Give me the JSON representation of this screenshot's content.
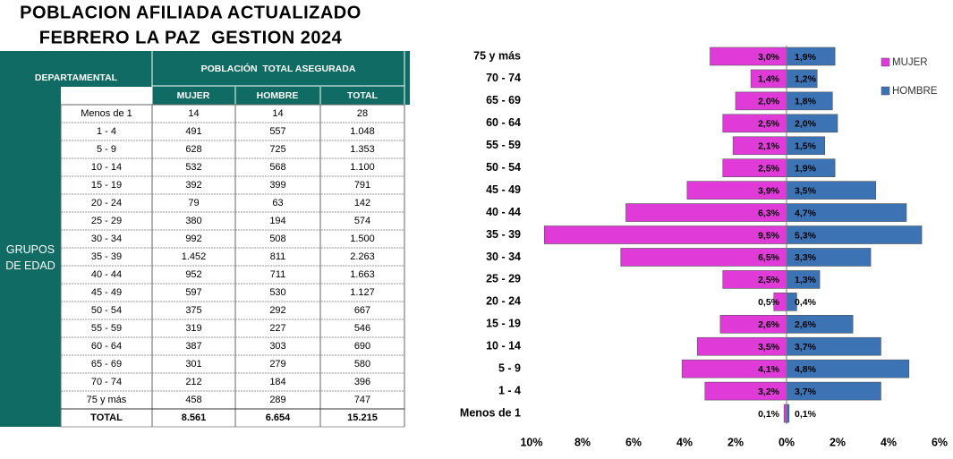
{
  "title": [
    "POBLACION AFILIADA ACTUALIZADO",
    "FEBRERO LA PAZ  GESTION 2024"
  ],
  "table": {
    "header": {
      "group": "DEPARTAMENTAL",
      "span": "POBLACIÓN  TOTAL ASEGURADA",
      "columns": [
        "MUJER",
        "HOMBRE",
        "TOTAL"
      ]
    },
    "row_group": "GRUPOS DE EDAD",
    "rows": [
      [
        "Menos de 1",
        "14",
        "14",
        "28"
      ],
      [
        "1 - 4",
        "491",
        "557",
        "1.048"
      ],
      [
        "5 - 9",
        "628",
        "725",
        "1.353"
      ],
      [
        "10 - 14",
        "532",
        "568",
        "1.100"
      ],
      [
        "15 - 19",
        "392",
        "399",
        "791"
      ],
      [
        "20 - 24",
        "79",
        "63",
        "142"
      ],
      [
        "25 - 29",
        "380",
        "194",
        "574"
      ],
      [
        "30 - 34",
        "992",
        "508",
        "1.500"
      ],
      [
        "35 - 39",
        "1.452",
        "811",
        "2.263"
      ],
      [
        "40 - 44",
        "952",
        "711",
        "1.663"
      ],
      [
        "45 - 49",
        "597",
        "530",
        "1.127"
      ],
      [
        "50 - 54",
        "375",
        "292",
        "667"
      ],
      [
        "55 - 59",
        "319",
        "227",
        "546"
      ],
      [
        "60 - 64",
        "387",
        "303",
        "690"
      ],
      [
        "65 - 69",
        "301",
        "279",
        "580"
      ],
      [
        "70 - 74",
        "212",
        "184",
        "396"
      ],
      [
        "75 y más",
        "458",
        "289",
        "747"
      ]
    ],
    "total": [
      "TOTAL",
      "8.561",
      "6.654",
      "15.215"
    ]
  },
  "chart_data": {
    "type": "bar",
    "orientation": "horizontal",
    "categories": [
      "75 y más",
      "70 - 74",
      "65 - 69",
      "60 - 64",
      "55 - 59",
      "50 - 54",
      "45 - 49",
      "40 - 44",
      "35 - 39",
      "30 - 34",
      "25 - 29",
      "20 - 24",
      "15 - 19",
      "10 - 14",
      "5 - 9",
      "1 - 4",
      "Menos de 1"
    ],
    "series": [
      {
        "name": "MUJER",
        "color": "#e03ad8",
        "values": [
          -3.0,
          -1.4,
          -2.0,
          -2.5,
          -2.1,
          -2.5,
          -3.9,
          -6.3,
          -9.5,
          -6.5,
          -2.5,
          -0.5,
          -2.6,
          -3.5,
          -4.1,
          -3.2,
          -0.1
        ],
        "value_labels": [
          "3,0%",
          "1,4%",
          "2,0%",
          "2,5%",
          "2,1%",
          "2,5%",
          "3,9%",
          "6,3%",
          "9,5%",
          "6,5%",
          "2,5%",
          "0,5%",
          "2,6%",
          "3,5%",
          "4,1%",
          "3,2%",
          "0,1%"
        ]
      },
      {
        "name": "HOMBRE",
        "color": "#3b73b5",
        "values": [
          1.9,
          1.2,
          1.8,
          2.0,
          1.5,
          1.9,
          3.5,
          4.7,
          5.3,
          3.3,
          1.3,
          0.4,
          2.6,
          3.7,
          4.8,
          3.7,
          0.1
        ],
        "value_labels": [
          "1,9%",
          "1,2%",
          "1,8%",
          "2,0%",
          "1,5%",
          "1,9%",
          "3,5%",
          "4,7%",
          "5,3%",
          "3,3%",
          "1,3%",
          "0,4%",
          "2,6%",
          "3,7%",
          "4,8%",
          "3,7%",
          "0,1%"
        ]
      }
    ],
    "xlim": [
      -10,
      6
    ],
    "xticks": [
      {
        "value": -10,
        "label": "10%"
      },
      {
        "value": -8,
        "label": "8%"
      },
      {
        "value": -6,
        "label": "6%"
      },
      {
        "value": -4,
        "label": "4%"
      },
      {
        "value": -2,
        "label": "2%"
      },
      {
        "value": 0,
        "label": "0%"
      },
      {
        "value": 2,
        "label": "2%"
      },
      {
        "value": 4,
        "label": "4%"
      },
      {
        "value": 6,
        "label": "6%"
      }
    ],
    "legend": "top-right"
  }
}
